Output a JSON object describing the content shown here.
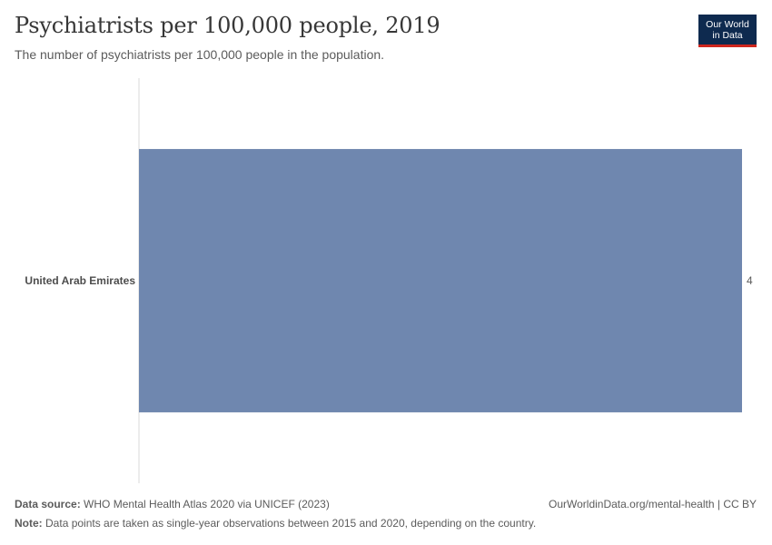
{
  "header": {
    "title": "Psychiatrists per 100,000 people, 2019",
    "subtitle": "The number of psychiatrists per 100,000 people in the population.",
    "logo_line1": "Our World",
    "logo_line2": "in Data"
  },
  "chart_data": {
    "type": "bar",
    "orientation": "horizontal",
    "categories": [
      "United Arab Emirates"
    ],
    "values": [
      4
    ],
    "value_labels": [
      "4"
    ],
    "bar_color": "#6f87af",
    "axis_line_color": "#dadada"
  },
  "footer": {
    "source_label": "Data source:",
    "source_text": "WHO Mental Health Atlas 2020 via UNICEF (2023)",
    "link_text": "OurWorldinData.org/mental-health | CC BY",
    "note_label": "Note:",
    "note_text": "Data points are taken as single-year observations between 2015 and 2020, depending on the country."
  }
}
